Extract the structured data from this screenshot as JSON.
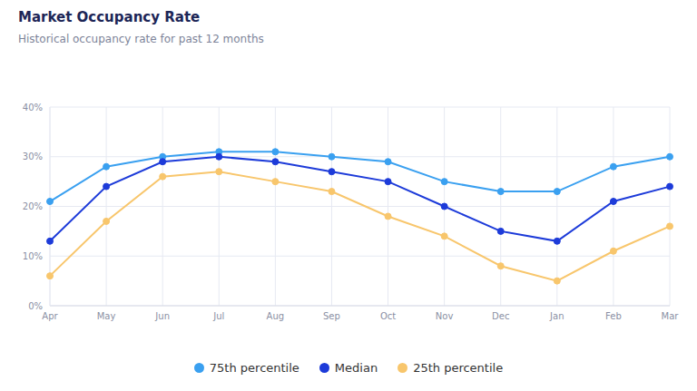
{
  "chart_data": {
    "type": "line",
    "title": "Market Occupancy Rate",
    "subtitle": "Historical occupancy rate for past 12 months",
    "categories": [
      "Apr",
      "May",
      "Jun",
      "Jul",
      "Aug",
      "Sep",
      "Oct",
      "Nov",
      "Dec",
      "Jan",
      "Feb",
      "Mar"
    ],
    "series": [
      {
        "name": "75th percentile",
        "color": "#3aa0f0",
        "values": [
          21,
          28,
          30,
          31,
          31,
          30,
          29,
          25,
          23,
          23,
          28,
          30
        ]
      },
      {
        "name": "Median",
        "color": "#1d3bd9",
        "values": [
          13,
          24,
          29,
          30,
          29,
          27,
          25,
          20,
          15,
          13,
          21,
          24
        ]
      },
      {
        "name": "25th percentile",
        "color": "#f8c66c",
        "values": [
          6,
          17,
          26,
          27,
          25,
          23,
          18,
          14,
          8,
          5,
          11,
          16
        ]
      }
    ],
    "ylim": [
      0,
      40
    ],
    "yticks": [
      {
        "value": 0,
        "label": "0%"
      },
      {
        "value": 10,
        "label": "10%"
      },
      {
        "value": 20,
        "label": "20%"
      },
      {
        "value": 30,
        "label": "30%"
      },
      {
        "value": 40,
        "label": "40%"
      }
    ],
    "grid": true,
    "legend": "bottom",
    "marker": "circle"
  }
}
